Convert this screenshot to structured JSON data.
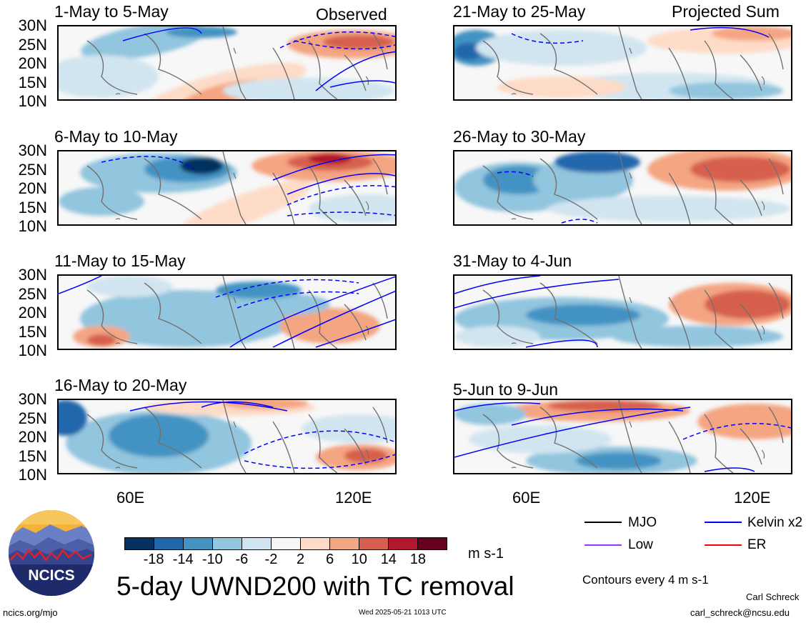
{
  "header": {
    "observed_label": "Observed",
    "projected_label": "Projected Sum"
  },
  "panels_left": [
    {
      "title": "1-May to 5-May"
    },
    {
      "title": "6-May to 10-May"
    },
    {
      "title": "11-May to 15-May"
    },
    {
      "title": "16-May to 20-May"
    }
  ],
  "panels_right": [
    {
      "title": "21-May to 25-May"
    },
    {
      "title": "26-May to 30-May"
    },
    {
      "title": "31-May to 4-Jun"
    },
    {
      "title": "5-Jun to 9-Jun"
    }
  ],
  "lat_labels": [
    "30N",
    "25N",
    "20N",
    "15N",
    "10N"
  ],
  "lon_labels": [
    "60E",
    "120E"
  ],
  "colorbar": {
    "ticks": [
      "-18",
      "-14",
      "-10",
      "-6",
      "-2",
      "2",
      "6",
      "10",
      "14",
      "18"
    ],
    "colors": [
      "#053061",
      "#2166ac",
      "#4393c3",
      "#92c5de",
      "#d1e5f0",
      "#f7f7f7",
      "#fddbc7",
      "#f4a582",
      "#d6604d",
      "#b2182b",
      "#67001f"
    ],
    "units": "m s-1"
  },
  "legend": {
    "mjo": "MJO",
    "kelvin": "Kelvin x2",
    "low": "Low",
    "er": "ER",
    "colors": {
      "mjo": "#000000",
      "kelvin": "#0000ff",
      "low": "#9933ff",
      "er": "#ff0000"
    },
    "contours_note": "Contours every 4 m s-1"
  },
  "footer": {
    "title": "5-day UWND200 with TC removal",
    "logo_text": "NCICS",
    "website": "ncics.org/mjo",
    "timestamp": "Wed 2025-05-21 1013 UTC",
    "author": "Carl Schreck",
    "email": "carl_schreck@ncsu.edu"
  }
}
